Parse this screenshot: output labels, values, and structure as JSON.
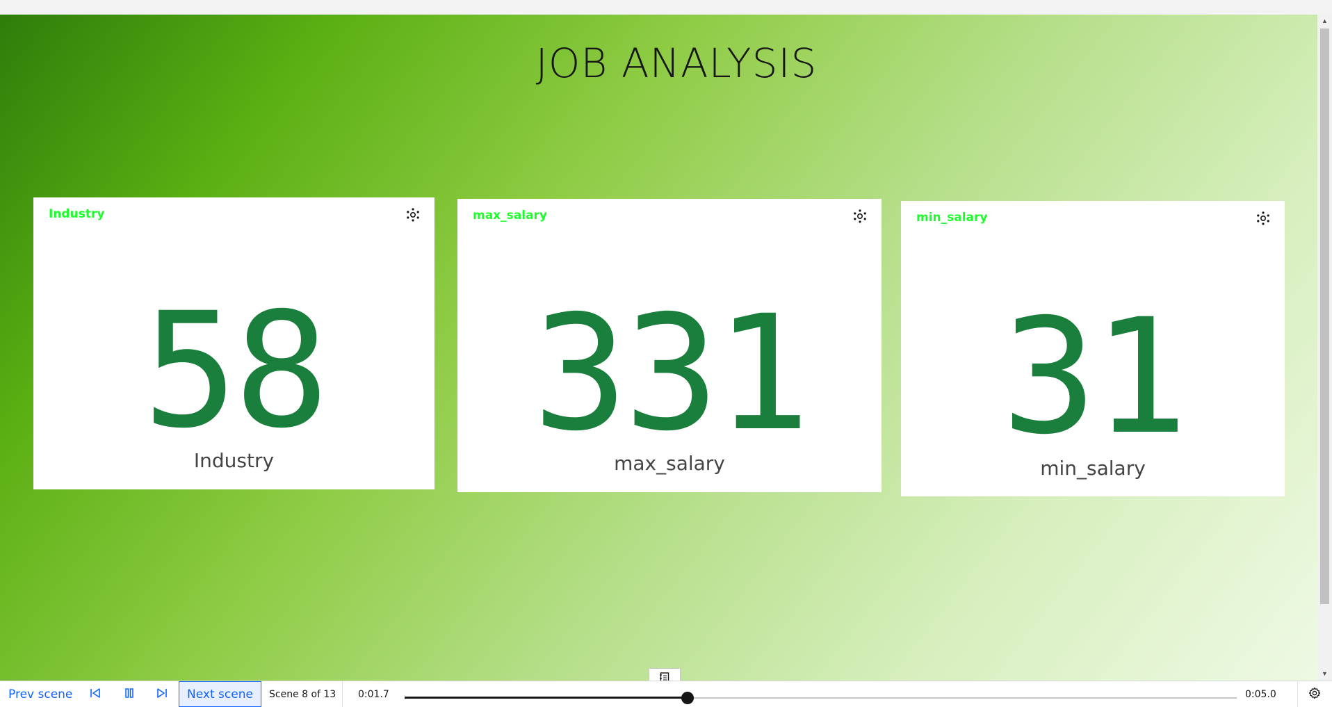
{
  "page": {
    "title": "JOB ANALYSIS"
  },
  "cards": [
    {
      "title": "Industry",
      "value": "58",
      "label": "Industry"
    },
    {
      "title": "max_salary",
      "value": "331",
      "label": "max_salary"
    },
    {
      "title": "min_salary",
      "value": "31",
      "label": "min_salary"
    }
  ],
  "icons": {
    "card_menu": "asterisk-dots-icon",
    "notes": "notebook-icon",
    "first_scene": "skip-back-icon",
    "pause": "pause-icon",
    "last_scene": "skip-forward-icon",
    "settings": "gear-icon"
  },
  "player": {
    "prev_label": "Prev scene",
    "next_label": "Next scene",
    "scene_count": "Scene 8 of 13",
    "time_current": "0:01.7",
    "time_end": "0:05.0",
    "progress": 0.34
  },
  "colors": {
    "accent": "#0f62fe",
    "card_title": "#1aff2a",
    "kpi_value": "#1a7f3c"
  }
}
